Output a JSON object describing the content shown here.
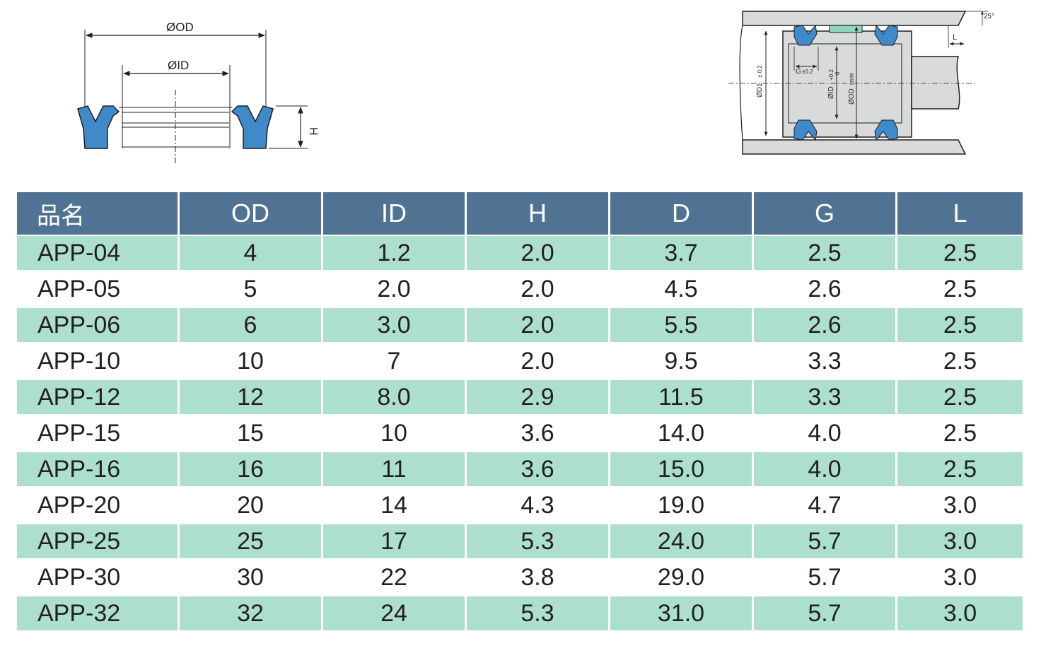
{
  "colors": {
    "header_bg": "#517393",
    "row_alt_bg": "#addfcd",
    "seal_blue": "#3f8ac8",
    "rod_gray": "#d9dada"
  },
  "seal_drawing": {
    "od_label": "ØOD",
    "id_label": "ØID",
    "h_label": "H"
  },
  "install_drawing": {
    "angle_label": "25°",
    "l_label": "L",
    "g_label": "G",
    "g_tol": "±0.2",
    "d1_label": "ØD1",
    "d1_tol": "± 0.2",
    "id_label": "ØID",
    "id_tol_upper": "+0.2",
    "id_tol_lower": "0",
    "od_label": "ØOD",
    "od_fit": "H9/f8"
  },
  "table": {
    "headers": [
      "品名",
      "OD",
      "ID",
      "H",
      "D",
      "G",
      "L"
    ],
    "rows": [
      [
        "APP-04",
        "4",
        "1.2",
        "2.0",
        "3.7",
        "2.5",
        "2.5"
      ],
      [
        "APP-05",
        "5",
        "2.0",
        "2.0",
        "4.5",
        "2.6",
        "2.5"
      ],
      [
        "APP-06",
        "6",
        "3.0",
        "2.0",
        "5.5",
        "2.6",
        "2.5"
      ],
      [
        "APP-10",
        "10",
        "7",
        "2.0",
        "9.5",
        "3.3",
        "2.5"
      ],
      [
        "APP-12",
        "12",
        "8.0",
        "2.9",
        "11.5",
        "3.3",
        "2.5"
      ],
      [
        "APP-15",
        "15",
        "10",
        "3.6",
        "14.0",
        "4.0",
        "2.5"
      ],
      [
        "APP-16",
        "16",
        "11",
        "3.6",
        "15.0",
        "4.0",
        "2.5"
      ],
      [
        "APP-20",
        "20",
        "14",
        "4.3",
        "19.0",
        "4.7",
        "3.0"
      ],
      [
        "APP-25",
        "25",
        "17",
        "5.3",
        "24.0",
        "5.7",
        "3.0"
      ],
      [
        "APP-30",
        "30",
        "22",
        "3.8",
        "29.0",
        "5.7",
        "3.0"
      ],
      [
        "APP-32",
        "32",
        "24",
        "5.3",
        "31.0",
        "5.7",
        "3.0"
      ]
    ]
  }
}
